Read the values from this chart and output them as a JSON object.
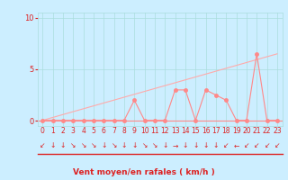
{
  "x": [
    0,
    1,
    2,
    3,
    4,
    5,
    6,
    7,
    8,
    9,
    10,
    11,
    12,
    13,
    14,
    15,
    16,
    17,
    18,
    19,
    20,
    21,
    22,
    23
  ],
  "y": [
    0.05,
    0.05,
    0.05,
    0.05,
    0.05,
    0.05,
    0.05,
    0.05,
    0.05,
    2.0,
    0.05,
    0.05,
    0.05,
    3.0,
    3.0,
    0.05,
    3.0,
    2.5,
    2.0,
    0.05,
    0.05,
    6.5,
    0.05,
    0.05
  ],
  "trend_x": [
    0,
    23
  ],
  "trend_y": [
    0.05,
    6.5
  ],
  "xlabel": "Vent moyen/en rafales ( km/h )",
  "xlim": [
    -0.5,
    23.5
  ],
  "ylim": [
    -0.5,
    10.5
  ],
  "yticks": [
    0,
    5,
    10
  ],
  "xticks": [
    0,
    1,
    2,
    3,
    4,
    5,
    6,
    7,
    8,
    9,
    10,
    11,
    12,
    13,
    14,
    15,
    16,
    17,
    18,
    19,
    20,
    21,
    22,
    23
  ],
  "line_color": "#ff8888",
  "trend_color": "#ffaaaa",
  "bg_color": "#cceeff",
  "grid_color": "#aadddd",
  "text_color": "#dd2222",
  "marker_size": 2.5,
  "arrow_chars": [
    "↙",
    "↓",
    "↓",
    "↘",
    "↘",
    "↘",
    "↓",
    "↘",
    "↓",
    "↓",
    "↘",
    "↘",
    "↓",
    "→",
    "↓",
    "↓",
    "↓",
    "↓",
    "↙",
    "←",
    "↙",
    "↙",
    "↙",
    "↙"
  ]
}
